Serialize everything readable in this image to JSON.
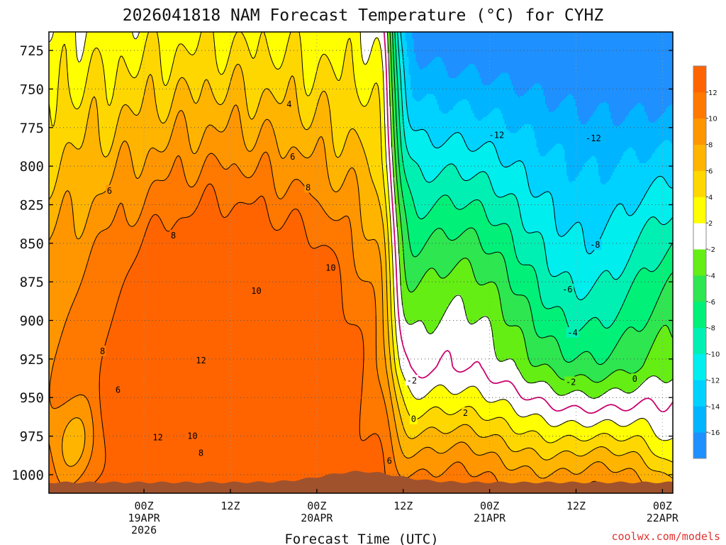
{
  "chart_data": {
    "type": "heatmap",
    "title": "2026041818 NAM Forecast Temperature (°C) for CYHZ",
    "xlabel": "Forecast Time (UTC)",
    "ylabel": "",
    "credit": "coolwx.com/models",
    "x_range": [
      -0.55,
      3.06
    ],
    "y_range": [
      713,
      1012
    ],
    "y_ticks": [
      725,
      750,
      775,
      800,
      825,
      850,
      875,
      900,
      925,
      950,
      975,
      1000
    ],
    "y_tick_labels": [
      "725",
      "750",
      "775",
      "800",
      "825",
      "850",
      "875",
      "900",
      "925",
      "950",
      "975",
      "1000"
    ],
    "x_ticks": [
      {
        "day": 0,
        "lines": [
          "00Z",
          "19APR",
          "2026"
        ]
      },
      {
        "day": 0.5,
        "lines": [
          "12Z"
        ]
      },
      {
        "day": 1,
        "lines": [
          "00Z",
          "20APR"
        ]
      },
      {
        "day": 1.5,
        "lines": [
          "12Z"
        ]
      },
      {
        "day": 2,
        "lines": [
          "00Z",
          "21APR"
        ]
      },
      {
        "day": 2.5,
        "lines": [
          "12Z"
        ]
      },
      {
        "day": 3,
        "lines": [
          "00Z",
          "22APR"
        ]
      }
    ],
    "colorbar": {
      "levels": [
        -18,
        -16,
        -14,
        -12,
        -10,
        -8,
        -6,
        -4,
        -2,
        2,
        4,
        6,
        8,
        10,
        12,
        14
      ],
      "tick_labels": [
        "-16",
        "-14",
        "-12",
        "-10",
        "-8",
        "-6",
        "-4",
        "-2",
        "2",
        "4",
        "6",
        "8",
        "10",
        "12"
      ],
      "colors": [
        "#1e90ff",
        "#00b4ff",
        "#00d2ff",
        "#00eeee",
        "#00f0b4",
        "#00f078",
        "#2de650",
        "#64ee14",
        "#ffffff",
        "#ffff00",
        "#ffd700",
        "#ffb400",
        "#ff9600",
        "#ff7800",
        "#ff6400"
      ]
    },
    "terrain_color": "#a0522d",
    "freezing_line_color": "#c8006e",
    "grid": "dotted",
    "contour_labels": [
      {
        "text": "4",
        "day": 0.84,
        "p": 760
      },
      {
        "text": "6",
        "day": 0.86,
        "p": 794
      },
      {
        "text": "8",
        "day": 0.95,
        "p": 814
      },
      {
        "text": "6",
        "day": -0.2,
        "p": 816
      },
      {
        "text": "8",
        "day": 0.17,
        "p": 845
      },
      {
        "text": "10",
        "day": 0.65,
        "p": 881
      },
      {
        "text": "10",
        "day": 1.08,
        "p": 866
      },
      {
        "text": "8",
        "day": -0.24,
        "p": 920
      },
      {
        "text": "6",
        "day": -0.15,
        "p": 945
      },
      {
        "text": "12",
        "day": 0.33,
        "p": 926
      },
      {
        "text": "12",
        "day": 0.08,
        "p": 976
      },
      {
        "text": "10",
        "day": 0.28,
        "p": 975
      },
      {
        "text": "8",
        "day": 0.33,
        "p": 986
      },
      {
        "text": "6",
        "day": 1.42,
        "p": 991
      },
      {
        "text": "-2",
        "day": 1.55,
        "p": 939
      },
      {
        "text": "0",
        "day": 1.56,
        "p": 964
      },
      {
        "text": "-12",
        "day": 2.04,
        "p": 780
      },
      {
        "text": "-12",
        "day": 2.6,
        "p": 782
      },
      {
        "text": "-8",
        "day": 2.61,
        "p": 851
      },
      {
        "text": "-6",
        "day": 2.45,
        "p": 880
      },
      {
        "text": "-4",
        "day": 2.48,
        "p": 908
      },
      {
        "text": "-2",
        "day": 2.47,
        "p": 940
      },
      {
        "text": "0",
        "day": 2.84,
        "p": 938
      },
      {
        "text": "2",
        "day": 1.86,
        "p": 960
      }
    ]
  }
}
